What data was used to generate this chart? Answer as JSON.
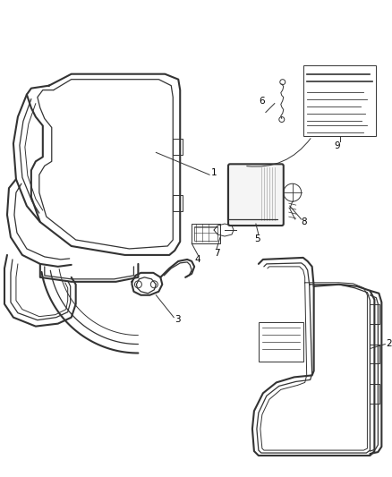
{
  "bg_color": "#ffffff",
  "line_color": "#333333",
  "label_color": "#000000",
  "lw_outer": 1.5,
  "lw_inner": 0.9,
  "lw_thin": 0.7,
  "figsize": [
    4.38,
    5.33
  ],
  "dpi": 100
}
